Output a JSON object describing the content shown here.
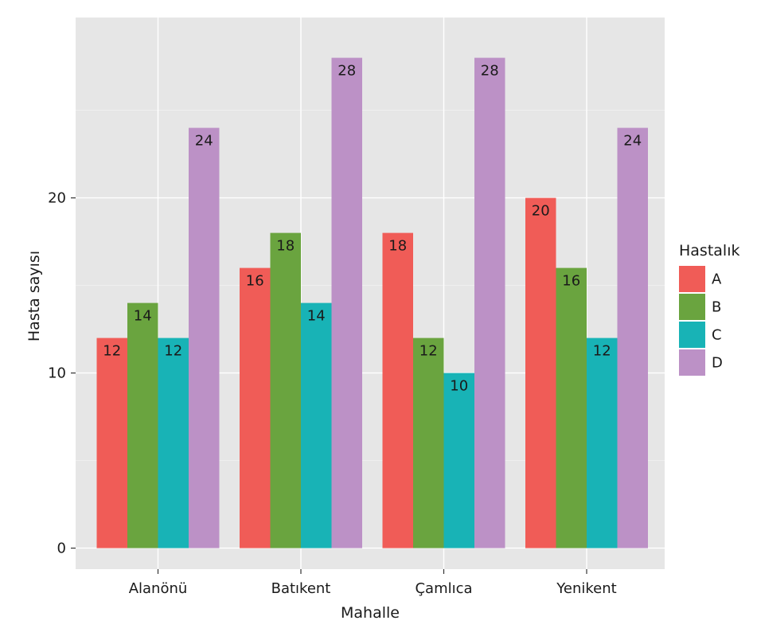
{
  "chart_data": {
    "type": "bar",
    "title": "",
    "xlabel": "Mahalle",
    "ylabel": "Hasta sayısı",
    "categories": [
      "Alanönü",
      "Batıkent",
      "Çamlıca",
      "Yenikent"
    ],
    "series": [
      {
        "name": "A",
        "color": "#f05c57",
        "values": [
          12,
          16,
          18,
          20
        ]
      },
      {
        "name": "B",
        "color": "#6aa43f",
        "values": [
          14,
          18,
          12,
          16
        ]
      },
      {
        "name": "C",
        "color": "#18b3b6",
        "values": [
          12,
          14,
          10,
          12
        ]
      },
      {
        "name": "D",
        "color": "#bc91c6",
        "values": [
          24,
          28,
          28,
          24
        ]
      }
    ],
    "ylim": [
      -1.2,
      30.3
    ],
    "yticks": [
      0,
      10,
      20
    ],
    "grid": true,
    "legend": {
      "title": "Hastalık",
      "position": "right"
    },
    "colors": {
      "panel_background": "#e6e6e6",
      "grid_major": "#ffffff",
      "grid_minor": "#f2f2f2",
      "tick": "#333333"
    }
  }
}
